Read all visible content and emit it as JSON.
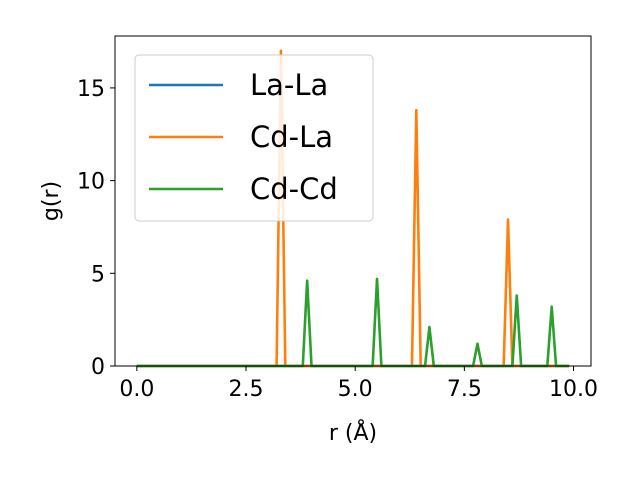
{
  "chart_data": {
    "type": "line",
    "title": "",
    "xlabel": "r (Å)",
    "ylabel": "g(r)",
    "xlim": [
      -0.5,
      10.4
    ],
    "ylim": [
      0,
      17.8
    ],
    "xticks": [
      0.0,
      2.5,
      5.0,
      7.5,
      10.0
    ],
    "xtick_labels": [
      "0.0",
      "2.5",
      "5.0",
      "7.5",
      "10.0"
    ],
    "yticks": [
      0,
      5,
      10,
      15
    ],
    "ytick_labels": [
      "0",
      "5",
      "10",
      "15"
    ],
    "grid": false,
    "legend_position": "top-left",
    "series": [
      {
        "name": "La-La",
        "color": "#1f77b4",
        "x": [
          0.0,
          9.9
        ],
        "y": [
          0,
          0
        ]
      },
      {
        "name": "Cd-La",
        "color": "#ff7f0e",
        "x": [
          0.0,
          3.2,
          3.3,
          3.4,
          6.3,
          6.4,
          6.5,
          8.4,
          8.5,
          8.6,
          9.9
        ],
        "y": [
          0,
          0,
          17.0,
          0,
          0,
          13.8,
          0,
          0,
          7.9,
          0,
          0
        ]
      },
      {
        "name": "Cd-Cd",
        "color": "#2ca02c",
        "x": [
          0.0,
          3.8,
          3.9,
          4.0,
          5.4,
          5.5,
          5.6,
          6.6,
          6.7,
          6.8,
          7.7,
          7.8,
          7.9,
          8.6,
          8.7,
          8.8,
          9.4,
          9.5,
          9.6,
          9.9
        ],
        "y": [
          0,
          0,
          4.6,
          0,
          0,
          4.7,
          0,
          0,
          2.1,
          0,
          0,
          1.2,
          0,
          0,
          3.8,
          0,
          0,
          3.2,
          0,
          0
        ]
      }
    ]
  }
}
